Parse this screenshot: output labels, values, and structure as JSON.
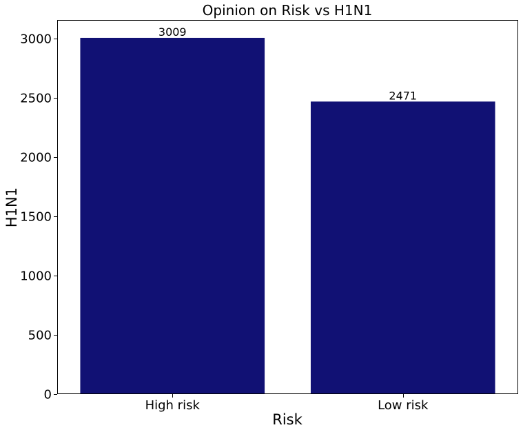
{
  "chart_data": {
    "type": "bar",
    "title": "Opinion on Risk vs H1N1",
    "xlabel": "Risk",
    "ylabel": "H1N1",
    "categories": [
      "High risk",
      "Low risk"
    ],
    "values": [
      3009,
      2471
    ],
    "data_labels": [
      "3009",
      "2471"
    ],
    "ylim": [
      0,
      3160
    ],
    "yticks": [
      0,
      500,
      1000,
      1500,
      2000,
      2500,
      3000
    ],
    "bar_color": "#111174",
    "grid": false,
    "legend": "none"
  }
}
